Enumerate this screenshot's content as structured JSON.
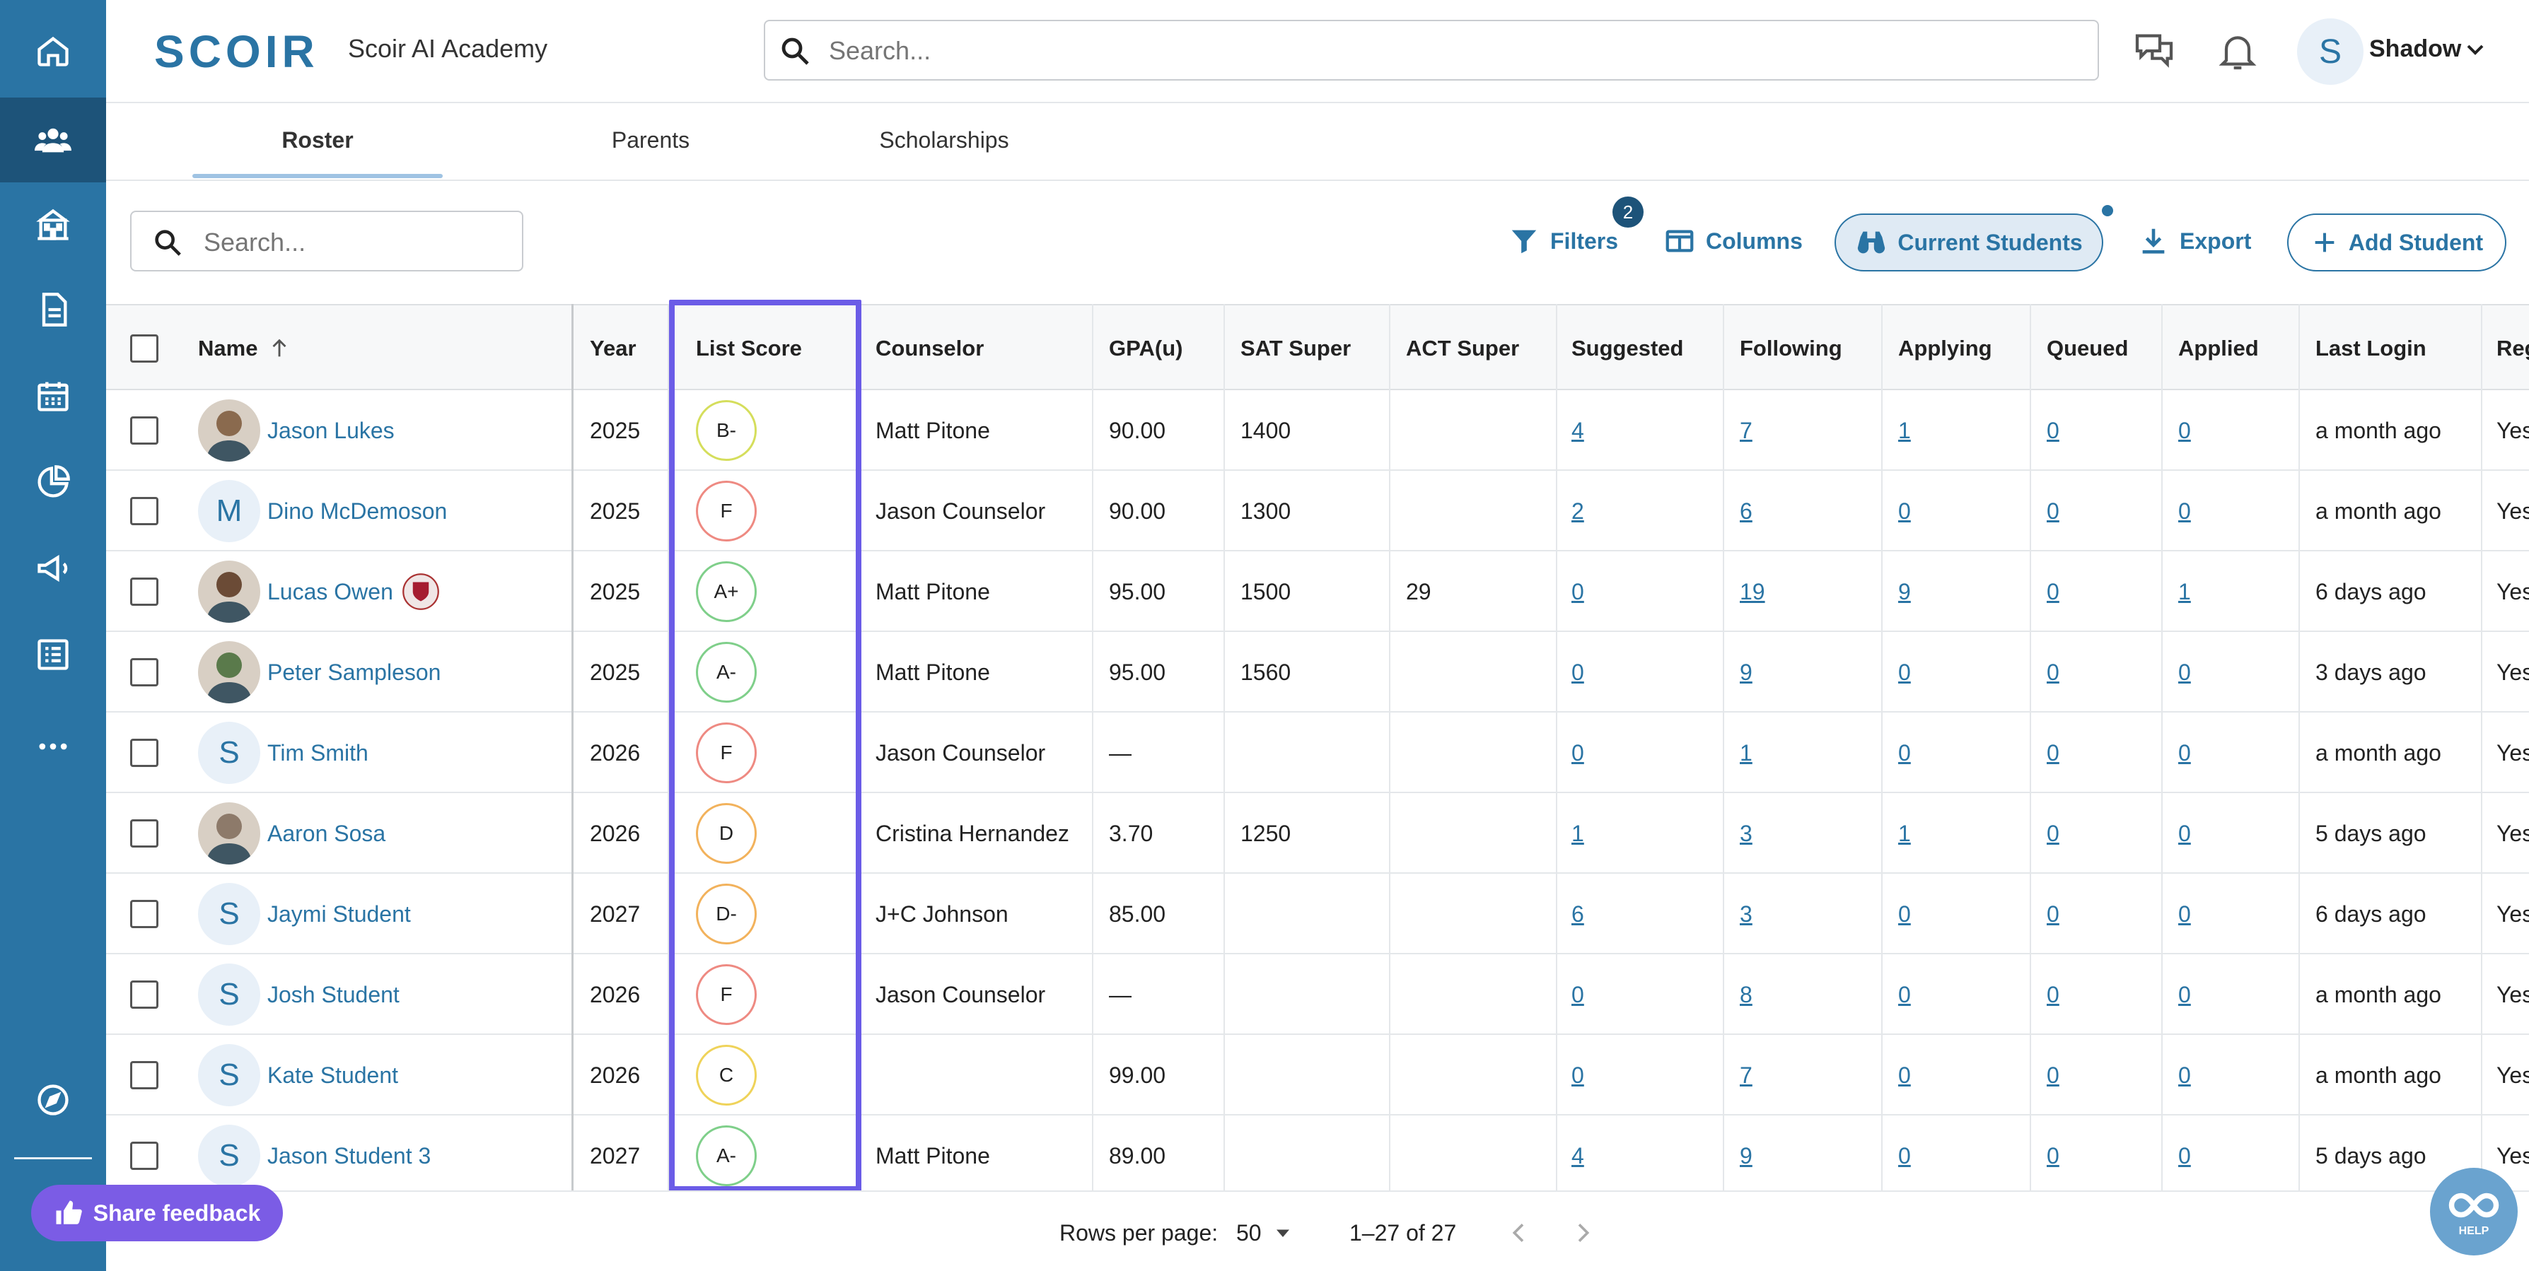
{
  "header": {
    "logo_text": "SCOIR",
    "school_name": "Scoir AI Academy",
    "search_placeholder": "Search...",
    "user_initial": "S",
    "user_name": "Shadow"
  },
  "tabs": [
    {
      "label": "Roster",
      "active": true
    },
    {
      "label": "Parents",
      "active": false
    },
    {
      "label": "Scholarships",
      "active": false
    }
  ],
  "toolbar": {
    "search_placeholder": "Search...",
    "filters_label": "Filters",
    "filters_count": "2",
    "columns_label": "Columns",
    "current_students_label": "Current Students",
    "export_label": "Export",
    "add_student_label": "Add Student"
  },
  "table": {
    "columns": [
      "Name",
      "Year",
      "List Score",
      "Counselor",
      "GPA(u)",
      "SAT Super",
      "ACT Super",
      "Suggested",
      "Following",
      "Applying",
      "Queued",
      "Applied",
      "Last Login",
      "Reg"
    ],
    "rows": [
      {
        "name": "Jason Lukes",
        "avatar": "photo",
        "year": "2025",
        "score": "B-",
        "counselor": "Matt Pitone",
        "gpa": "90.00",
        "sat": "1400",
        "act": "",
        "suggested": "4",
        "following": "7",
        "applying": "1",
        "queued": "0",
        "applied": "0",
        "last_login": "a month ago",
        "reg": "Yes"
      },
      {
        "name": "Dino McDemoson",
        "avatar": "M",
        "year": "2025",
        "score": "F",
        "counselor": "Jason Counselor",
        "gpa": "90.00",
        "sat": "1300",
        "act": "",
        "suggested": "2",
        "following": "6",
        "applying": "0",
        "queued": "0",
        "applied": "0",
        "last_login": "a month ago",
        "reg": "Yes"
      },
      {
        "name": "Lucas Owen",
        "avatar": "photo",
        "year": "2025",
        "score": "A+",
        "counselor": "Matt Pitone",
        "gpa": "95.00",
        "sat": "1500",
        "act": "29",
        "suggested": "0",
        "following": "19",
        "applying": "9",
        "queued": "0",
        "applied": "1",
        "last_login": "6 days ago",
        "reg": "Yes"
      },
      {
        "name": "Peter Sampleson",
        "avatar": "photo",
        "year": "2025",
        "score": "A-",
        "counselor": "Matt Pitone",
        "gpa": "95.00",
        "sat": "1560",
        "act": "",
        "suggested": "0",
        "following": "9",
        "applying": "0",
        "queued": "0",
        "applied": "0",
        "last_login": "3 days ago",
        "reg": "Yes"
      },
      {
        "name": "Tim Smith",
        "avatar": "S",
        "year": "2026",
        "score": "F",
        "counselor": "Jason Counselor",
        "gpa": "—",
        "sat": "",
        "act": "",
        "suggested": "0",
        "following": "1",
        "applying": "0",
        "queued": "0",
        "applied": "0",
        "last_login": "a month ago",
        "reg": "Yes"
      },
      {
        "name": "Aaron Sosa",
        "avatar": "photo",
        "year": "2026",
        "score": "D",
        "counselor": "Cristina Hernandez",
        "gpa": "3.70",
        "sat": "1250",
        "act": "",
        "suggested": "1",
        "following": "3",
        "applying": "1",
        "queued": "0",
        "applied": "0",
        "last_login": "5 days ago",
        "reg": "Yes"
      },
      {
        "name": "Jaymi Student",
        "avatar": "S",
        "year": "2027",
        "score": "D-",
        "counselor": "J+C Johnson",
        "gpa": "85.00",
        "sat": "",
        "act": "",
        "suggested": "6",
        "following": "3",
        "applying": "0",
        "queued": "0",
        "applied": "0",
        "last_login": "6 days ago",
        "reg": "Yes"
      },
      {
        "name": "Josh Student",
        "avatar": "S",
        "year": "2026",
        "score": "F",
        "counselor": "Jason Counselor",
        "gpa": "—",
        "sat": "",
        "act": "",
        "suggested": "0",
        "following": "8",
        "applying": "0",
        "queued": "0",
        "applied": "0",
        "last_login": "a month ago",
        "reg": "Yes"
      },
      {
        "name": "Kate Student",
        "avatar": "S",
        "year": "2026",
        "score": "C",
        "counselor": "",
        "gpa": "99.00",
        "sat": "",
        "act": "",
        "suggested": "0",
        "following": "7",
        "applying": "0",
        "queued": "0",
        "applied": "0",
        "last_login": "a month ago",
        "reg": "Yes"
      },
      {
        "name": "Jason Student 3",
        "avatar": "S",
        "year": "2027",
        "score": "A-",
        "counselor": "Matt Pitone",
        "gpa": "89.00",
        "sat": "",
        "act": "",
        "suggested": "4",
        "following": "9",
        "applying": "0",
        "queued": "0",
        "applied": "0",
        "last_login": "5 days ago",
        "reg": "Yes"
      }
    ]
  },
  "grade_colors": {
    "A+": "#7fcf8a",
    "A-": "#7fcf8a",
    "B-": "#d5de5c",
    "C": "#efd35a",
    "D": "#f2b25c",
    "D-": "#f2b25c",
    "F": "#ee8a82"
  },
  "footer": {
    "feedback_label": "Share feedback",
    "rows_per_page_label": "Rows per page:",
    "rows_per_page_value": "50",
    "range_label": "1–27 of 27",
    "help_label": "HELP"
  },
  "colors": {
    "brand": "#2a74a4",
    "highlight": "#6b5ce7",
    "feedback": "#7b5ce5"
  }
}
